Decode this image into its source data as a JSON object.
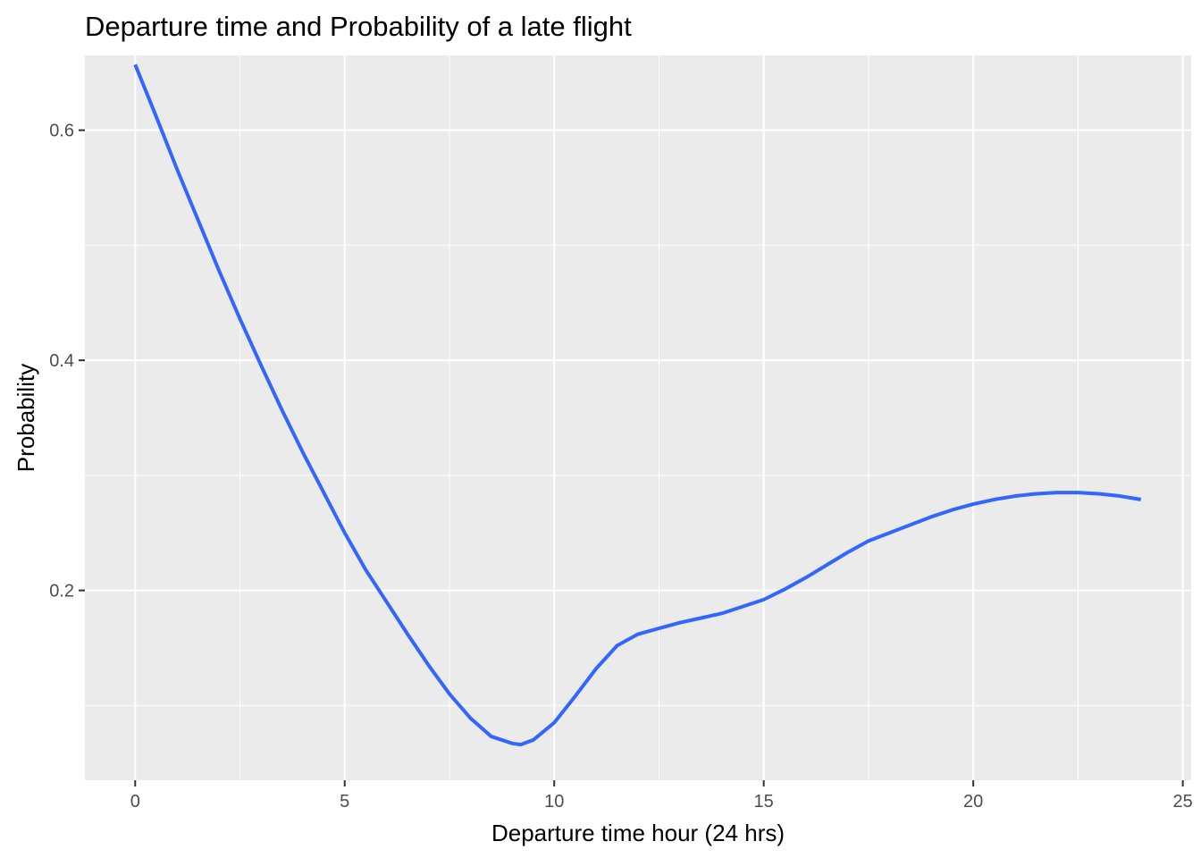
{
  "chart_data": {
    "type": "line",
    "title": "Departure time and Probability of a late flight",
    "xlabel": "Departure time hour (24 hrs)",
    "ylabel": "Probability",
    "xlim": [
      -1.2,
      25.2
    ],
    "ylim": [
      0.035,
      0.665
    ],
    "x_ticks": [
      0,
      5,
      10,
      15,
      20,
      25
    ],
    "x_tick_labels": [
      "0",
      "5",
      "10",
      "15",
      "20",
      "25"
    ],
    "y_ticks": [
      0.2,
      0.4,
      0.6
    ],
    "y_tick_labels": [
      "0.2",
      "0.4",
      "0.6"
    ],
    "x_minor_ticks": [
      2.5,
      7.5,
      12.5,
      17.5,
      22.5
    ],
    "y_minor_ticks": [
      0.1,
      0.3,
      0.5
    ],
    "grid": true,
    "legend": "none",
    "colors": {
      "panel_background": "#ebebeb",
      "grid": "#ffffff",
      "line": "#3366ff"
    },
    "series": [
      {
        "x": [
          0,
          0.5,
          1,
          1.5,
          2,
          2.5,
          3,
          3.5,
          4,
          4.5,
          5,
          5.5,
          6,
          6.5,
          7,
          7.5,
          8,
          8.5,
          9,
          9.2,
          9.5,
          10,
          10.5,
          11,
          11.5,
          12,
          12.5,
          13,
          13.5,
          14,
          14.5,
          15,
          15.5,
          16,
          16.5,
          17,
          17.5,
          18,
          18.5,
          19,
          19.5,
          20,
          20.5,
          21,
          21.5,
          22,
          22.5,
          23,
          23.5,
          24
        ],
        "y": [
          0.657,
          0.612,
          0.566,
          0.522,
          0.478,
          0.436,
          0.396,
          0.357,
          0.32,
          0.285,
          0.25,
          0.218,
          0.19,
          0.162,
          0.135,
          0.11,
          0.089,
          0.073,
          0.067,
          0.066,
          0.07,
          0.085,
          0.108,
          0.132,
          0.152,
          0.162,
          0.167,
          0.172,
          0.176,
          0.18,
          0.186,
          0.192,
          0.201,
          0.211,
          0.222,
          0.233,
          0.243,
          0.25,
          0.257,
          0.264,
          0.27,
          0.275,
          0.279,
          0.282,
          0.284,
          0.285,
          0.285,
          0.284,
          0.282,
          0.279
        ]
      }
    ]
  }
}
